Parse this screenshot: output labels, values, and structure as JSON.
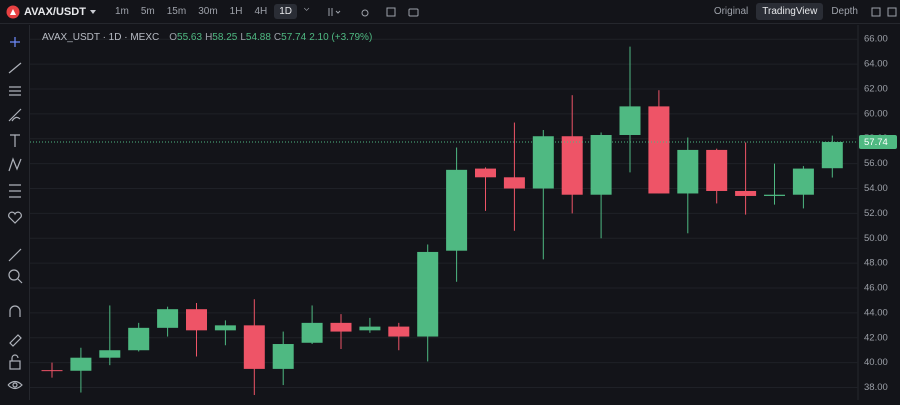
{
  "toolbar": {
    "symbol": "AVAX/USDT",
    "intervals": [
      "1m",
      "5m",
      "15m",
      "30m",
      "1H",
      "4H",
      "1D"
    ],
    "active_interval": 6,
    "views": [
      "Original",
      "TradingView",
      "Depth"
    ],
    "active_view": 1
  },
  "chart_data": {
    "type": "candlestick",
    "title": "AVAX_USDT · 1D · MEXC",
    "legend": [
      {
        "key": "O",
        "value": "55.63"
      },
      {
        "key": "H",
        "value": "58.25"
      },
      {
        "key": "L",
        "value": "54.88"
      },
      {
        "key": "C",
        "value": "57.74"
      }
    ],
    "change": "2.10 (+3.79%)",
    "categories": [
      null,
      null,
      null,
      null,
      null,
      null,
      null,
      null,
      null,
      null,
      null,
      null,
      null,
      null,
      null,
      null,
      null,
      null,
      null,
      null,
      null,
      null,
      null,
      null,
      null,
      null,
      null,
      null
    ],
    "open": [
      39.4,
      39.35,
      40.4,
      41.0,
      42.8,
      44.3,
      42.6,
      43.0,
      39.5,
      41.6,
      43.2,
      42.6,
      42.9,
      42.1,
      49.0,
      55.6,
      54.9,
      54.0,
      58.2,
      53.5,
      58.3,
      60.6,
      53.6,
      57.1,
      53.8,
      53.4,
      53.5,
      55.63
    ],
    "high": [
      40.0,
      41.2,
      44.6,
      43.2,
      44.5,
      44.8,
      43.4,
      45.1,
      42.5,
      44.6,
      43.9,
      43.6,
      43.2,
      49.5,
      57.3,
      55.7,
      59.3,
      58.7,
      61.5,
      58.5,
      65.4,
      61.9,
      58.1,
      57.2,
      57.7,
      56.0,
      55.8,
      58.25
    ],
    "low": [
      38.8,
      37.6,
      39.8,
      40.9,
      42.1,
      40.5,
      41.4,
      37.4,
      38.2,
      41.5,
      41.1,
      42.4,
      41.0,
      40.1,
      46.5,
      52.2,
      50.6,
      48.3,
      52.0,
      50.0,
      55.3,
      53.6,
      50.4,
      52.8,
      51.9,
      52.7,
      52.4,
      54.88
    ],
    "close": [
      39.35,
      40.4,
      41.0,
      42.8,
      44.3,
      42.6,
      43.0,
      39.5,
      41.5,
      43.2,
      42.5,
      42.9,
      42.1,
      48.9,
      55.5,
      54.9,
      54.0,
      58.2,
      53.5,
      58.3,
      60.6,
      53.6,
      57.1,
      53.8,
      53.4,
      53.5,
      55.6,
      57.74
    ],
    "up_color": "#4fb982",
    "down_color": "#ee5467",
    "ylim": [
      37,
      66.9
    ],
    "yticks": [
      {
        "value": 38,
        "label": "38.00"
      },
      {
        "value": 40,
        "label": "40.00"
      },
      {
        "value": 42,
        "label": "42.00"
      },
      {
        "value": 44,
        "label": "44.00"
      },
      {
        "value": 46,
        "label": "46.00"
      },
      {
        "value": 48,
        "label": "48.00"
      },
      {
        "value": 50,
        "label": "50.00"
      },
      {
        "value": 52,
        "label": "52.00"
      },
      {
        "value": 54,
        "label": "54.00"
      },
      {
        "value": 56,
        "label": "56.00"
      },
      {
        "value": 58,
        "label": "58.00"
      },
      {
        "value": 60,
        "label": "60.00"
      },
      {
        "value": 62,
        "label": "62.00"
      },
      {
        "value": 64,
        "label": "64.00"
      },
      {
        "value": 66,
        "label": "66.00"
      }
    ],
    "grid": true
  }
}
